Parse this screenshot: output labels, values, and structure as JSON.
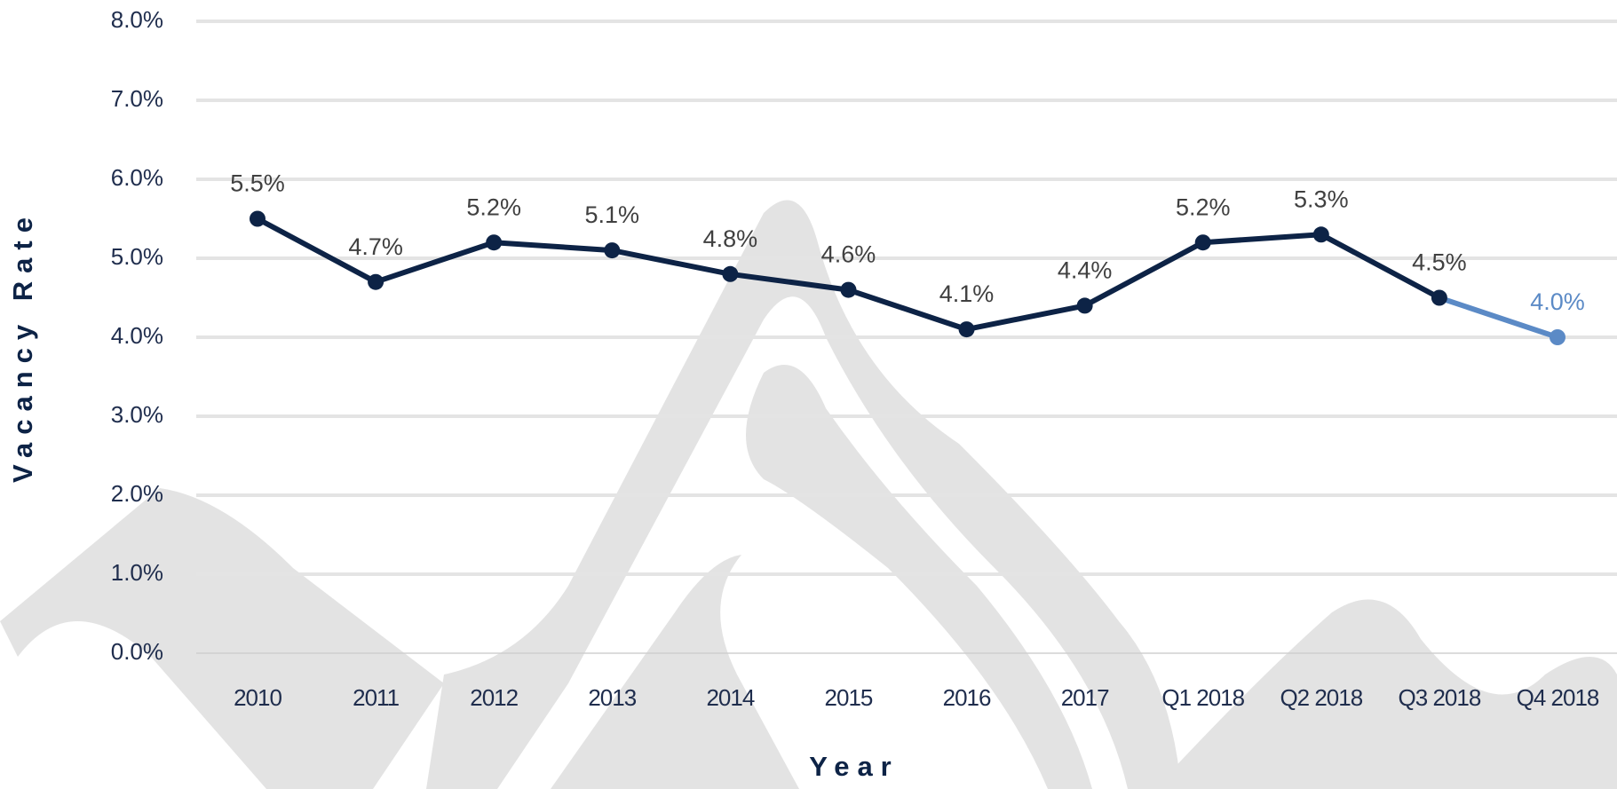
{
  "chart_data": {
    "type": "line",
    "x_label": "Year",
    "y_label": "Vacancy Rate",
    "categories": [
      "2010",
      "2011",
      "2012",
      "2013",
      "2014",
      "2015",
      "2016",
      "2017",
      "Q1 2018",
      "Q2 2018",
      "Q3 2018",
      "Q4 2018"
    ],
    "values": [
      5.5,
      4.7,
      5.2,
      5.1,
      4.8,
      4.6,
      4.1,
      4.4,
      5.2,
      5.3,
      4.5,
      4.0
    ],
    "value_labels": [
      "5.5%",
      "4.7%",
      "5.2%",
      "5.1%",
      "4.8%",
      "4.6%",
      "4.1%",
      "4.4%",
      "5.2%",
      "5.3%",
      "4.5%",
      "4.0%"
    ],
    "colors": [
      "#0d2346",
      "#0d2346",
      "#0d2346",
      "#0d2346",
      "#0d2346",
      "#0d2346",
      "#0d2346",
      "#0d2346",
      "#0d2346",
      "#0d2346",
      "#0d2346",
      "#5b8ac6"
    ],
    "value_label_colors": [
      "#404040",
      "#404040",
      "#404040",
      "#404040",
      "#404040",
      "#404040",
      "#404040",
      "#404040",
      "#404040",
      "#404040",
      "#404040",
      "#5b8ac6"
    ],
    "ylim": [
      0,
      8
    ],
    "yticks": [
      {
        "value": 0,
        "label": "0.0%"
      },
      {
        "value": 1,
        "label": "1.0%"
      },
      {
        "value": 2,
        "label": "2.0%"
      },
      {
        "value": 3,
        "label": "3.0%"
      },
      {
        "value": 4,
        "label": "4.0%"
      },
      {
        "value": 5,
        "label": "5.0%"
      },
      {
        "value": 6,
        "label": "6.0%"
      },
      {
        "value": 7,
        "label": "7.0%"
      },
      {
        "value": 8,
        "label": "8.0%"
      }
    ],
    "grid": true
  }
}
